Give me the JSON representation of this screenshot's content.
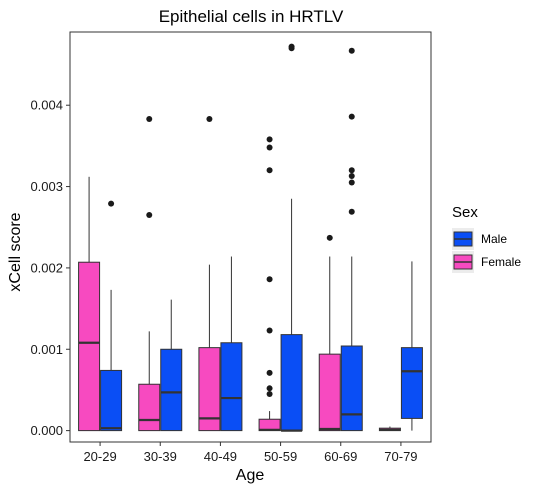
{
  "chart_data": {
    "type": "boxplot",
    "title": "Epithelial cells in HRTLV",
    "xlabel": "Age",
    "ylabel": "xCell score",
    "ylim": [
      -0.00014,
      0.0049
    ],
    "yticks": [
      0.0,
      0.001,
      0.002,
      0.003,
      0.004
    ],
    "ytick_labels": [
      "0.000",
      "0.001",
      "0.002",
      "0.003",
      "0.004"
    ],
    "categories": [
      "20-29",
      "30-39",
      "40-49",
      "50-59",
      "60-69",
      "70-79"
    ],
    "legend": {
      "title": "Sex",
      "position": "right",
      "entries": [
        {
          "name": "Male",
          "color": "#0a4ef5"
        },
        {
          "name": "Female",
          "color": "#f74ac0"
        }
      ]
    },
    "grid": false,
    "series": [
      {
        "name": "Female",
        "color": "#f74ac0",
        "boxes": [
          {
            "category": "20-29",
            "q1": 0.0,
            "median": 0.00108,
            "q3": 0.00207,
            "whisker_low": 0.0,
            "whisker_high": 0.00312,
            "outliers": []
          },
          {
            "category": "30-39",
            "q1": 0.0,
            "median": 0.00013,
            "q3": 0.00057,
            "whisker_low": 0.0,
            "whisker_high": 0.00122,
            "outliers": [
              0.00383,
              0.00265
            ]
          },
          {
            "category": "40-49",
            "q1": 0.0,
            "median": 0.00015,
            "q3": 0.00102,
            "whisker_low": 0.0,
            "whisker_high": 0.00204,
            "outliers": [
              0.00383
            ]
          },
          {
            "category": "50-59",
            "q1": 0.0,
            "median": 1e-05,
            "q3": 0.00014,
            "whisker_low": 0.0,
            "whisker_high": 0.00024,
            "outliers": [
              0.00358,
              0.00348,
              0.0032,
              0.00186,
              0.00123,
              0.00071,
              0.00052,
              0.00045
            ]
          },
          {
            "category": "60-69",
            "q1": 0.0,
            "median": 2e-05,
            "q3": 0.00094,
            "whisker_low": 0.0,
            "whisker_high": 0.00214,
            "outliers": [
              0.00237
            ]
          },
          {
            "category": "70-79",
            "q1": 0.0,
            "median": 1e-05,
            "q3": 3e-05,
            "whisker_low": 0.0,
            "whisker_high": 5e-05,
            "outliers": []
          }
        ]
      },
      {
        "name": "Male",
        "color": "#0a4ef5",
        "boxes": [
          {
            "category": "20-29",
            "q1": 0.0,
            "median": 3e-05,
            "q3": 0.00074,
            "whisker_low": 0.0,
            "whisker_high": 0.00173,
            "outliers": [
              0.00279
            ]
          },
          {
            "category": "30-39",
            "q1": 0.0,
            "median": 0.00047,
            "q3": 0.001,
            "whisker_low": 0.0,
            "whisker_high": 0.00161,
            "outliers": []
          },
          {
            "category": "40-49",
            "q1": 0.0,
            "median": 0.0004,
            "q3": 0.00108,
            "whisker_low": 0.0,
            "whisker_high": 0.00214,
            "outliers": []
          },
          {
            "category": "50-59",
            "q1": 0.0,
            "median": 0.0,
            "q3": 0.00118,
            "whisker_low": 0.0,
            "whisker_high": 0.00285,
            "outliers": [
              0.00472,
              0.0047
            ]
          },
          {
            "category": "60-69",
            "q1": 0.0,
            "median": 0.0002,
            "q3": 0.00104,
            "whisker_low": 0.0,
            "whisker_high": 0.00214,
            "outliers": [
              0.00467,
              0.00386,
              0.0032,
              0.00313,
              0.00305,
              0.00269
            ]
          },
          {
            "category": "70-79",
            "q1": 0.00015,
            "median": 0.00073,
            "q3": 0.00102,
            "whisker_low": 0.0,
            "whisker_high": 0.00208,
            "outliers": []
          }
        ]
      }
    ]
  }
}
